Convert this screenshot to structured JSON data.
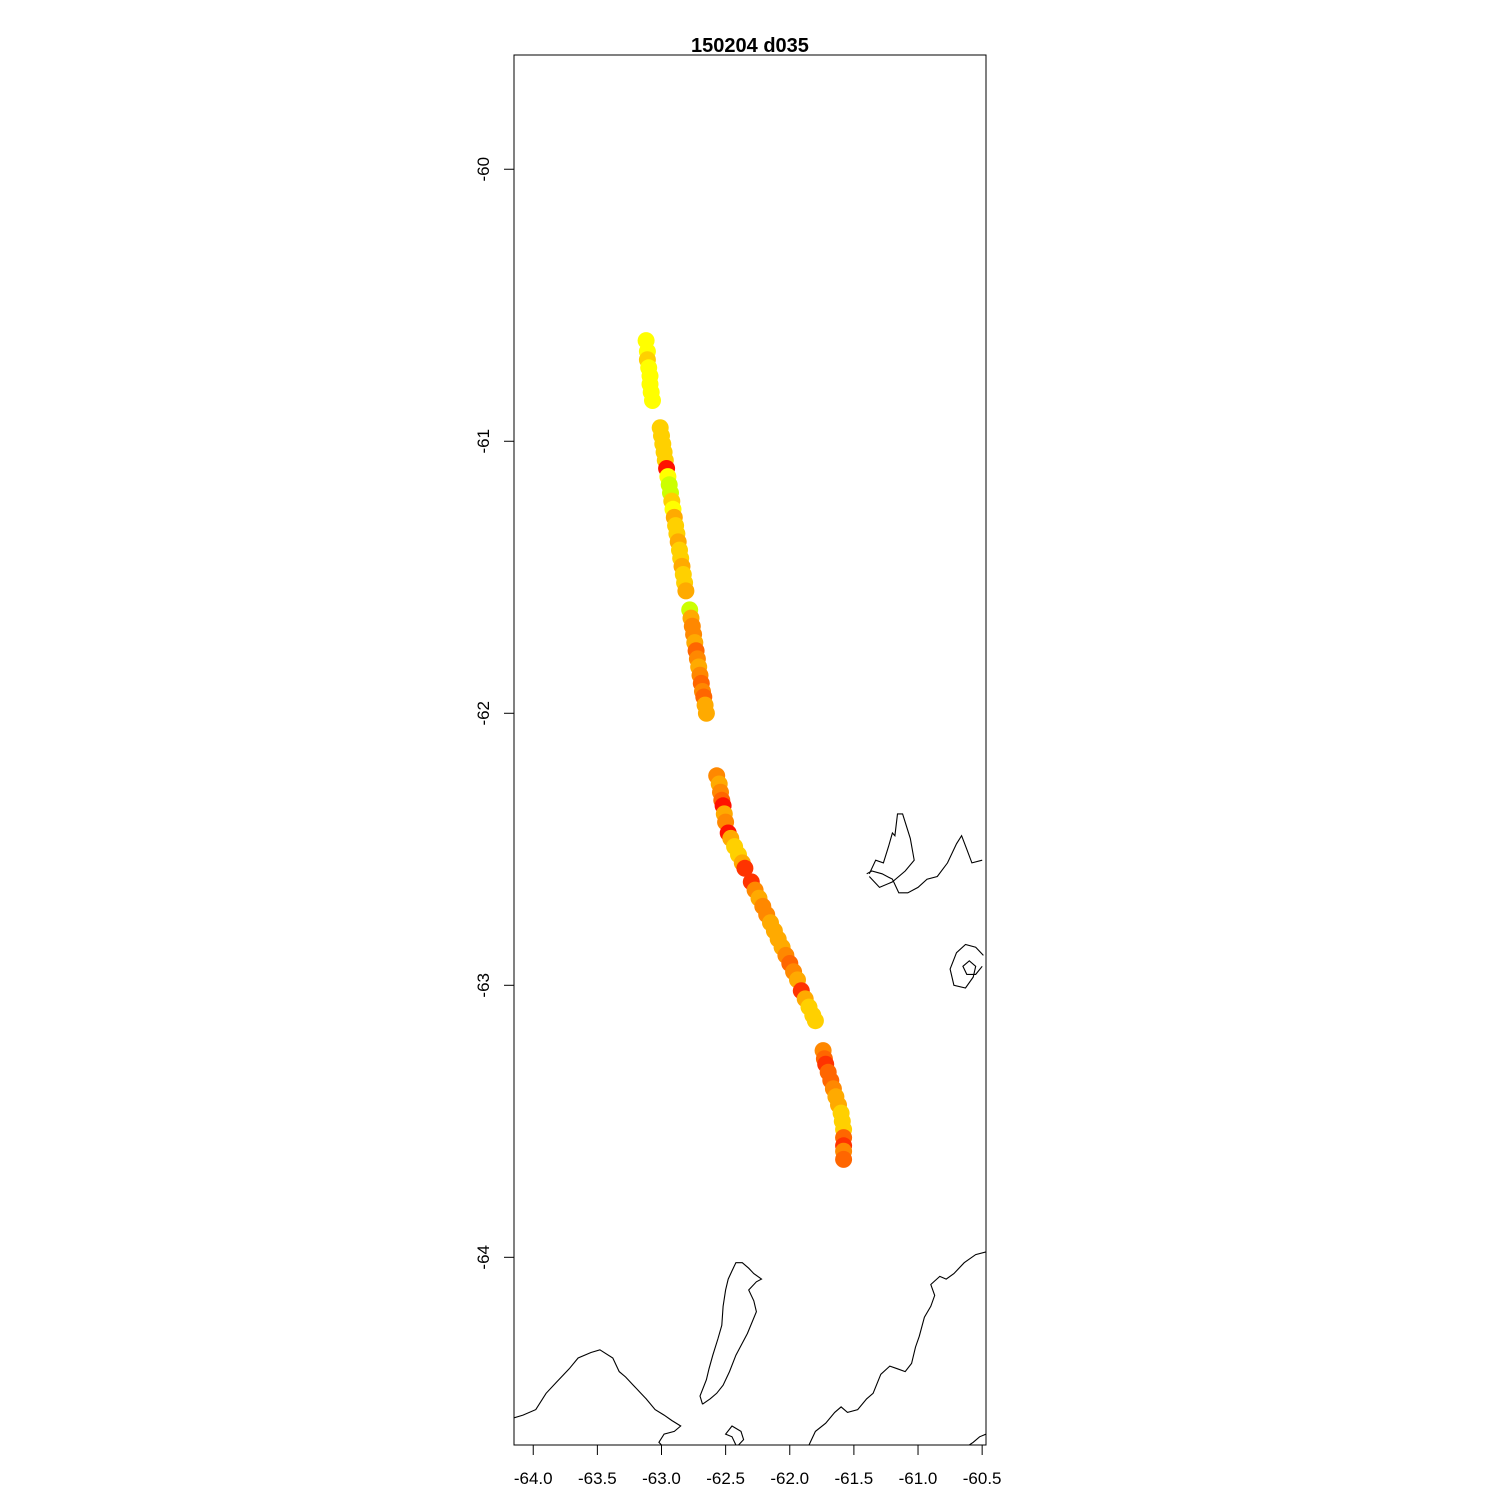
{
  "title": "150204   d035",
  "chart_data": {
    "type": "scatter",
    "title": "150204   d035",
    "xlabel": "",
    "ylabel": "",
    "xlim": [
      -64.15,
      -60.47
    ],
    "ylim": [
      -64.69,
      -59.58
    ],
    "x_ticks": [
      {
        "value": -64.0,
        "label": "-64.0"
      },
      {
        "value": -63.5,
        "label": "-63.5"
      },
      {
        "value": -63.0,
        "label": "-63.0"
      },
      {
        "value": -62.5,
        "label": "-62.5"
      },
      {
        "value": -62.0,
        "label": "-62.0"
      },
      {
        "value": -61.5,
        "label": "-61.5"
      },
      {
        "value": -61.0,
        "label": "-61.0"
      },
      {
        "value": -60.5,
        "label": "-60.5"
      }
    ],
    "y_ticks": [
      {
        "value": -60,
        "label": "-60"
      },
      {
        "value": -61,
        "label": "-61"
      },
      {
        "value": -62,
        "label": "-62"
      },
      {
        "value": -63,
        "label": "-63"
      },
      {
        "value": -64,
        "label": "-64"
      }
    ],
    "grid": false,
    "legend": "none",
    "colors": {
      "yellow": "#ffff00",
      "yellow_green": "#ccff00",
      "gold": "#ffd000",
      "amber": "#ffaa00",
      "orange": "#ff8800",
      "dark_orange": "#ff6600",
      "red_orange": "#ff3300",
      "red": "#ff1100"
    },
    "series": [
      {
        "points": [
          {
            "x": -63.12,
            "y": -60.63,
            "c": "yellow"
          },
          {
            "x": -63.11,
            "y": -60.67,
            "c": "yellow"
          },
          {
            "x": -63.11,
            "y": -60.7,
            "c": "gold"
          },
          {
            "x": -63.1,
            "y": -60.73,
            "c": "yellow"
          },
          {
            "x": -63.09,
            "y": -60.76,
            "c": "yellow"
          },
          {
            "x": -63.09,
            "y": -60.79,
            "c": "yellow"
          },
          {
            "x": -63.08,
            "y": -60.82,
            "c": "yellow"
          },
          {
            "x": -63.07,
            "y": -60.85,
            "c": "yellow"
          },
          {
            "x": -63.01,
            "y": -60.95,
            "c": "gold"
          },
          {
            "x": -63.0,
            "y": -60.98,
            "c": "gold"
          },
          {
            "x": -62.99,
            "y": -61.01,
            "c": "gold"
          },
          {
            "x": -62.98,
            "y": -61.04,
            "c": "gold"
          },
          {
            "x": -62.97,
            "y": -61.07,
            "c": "gold"
          },
          {
            "x": -62.96,
            "y": -61.1,
            "c": "red"
          },
          {
            "x": -62.95,
            "y": -61.13,
            "c": "yellow"
          },
          {
            "x": -62.94,
            "y": -61.16,
            "c": "yellow_green"
          },
          {
            "x": -62.93,
            "y": -61.19,
            "c": "yellow_green"
          },
          {
            "x": -62.92,
            "y": -61.22,
            "c": "gold"
          },
          {
            "x": -62.91,
            "y": -61.25,
            "c": "yellow"
          },
          {
            "x": -62.9,
            "y": -61.28,
            "c": "amber"
          },
          {
            "x": -62.89,
            "y": -61.31,
            "c": "gold"
          },
          {
            "x": -62.88,
            "y": -61.34,
            "c": "gold"
          },
          {
            "x": -62.87,
            "y": -61.37,
            "c": "amber"
          },
          {
            "x": -62.86,
            "y": -61.4,
            "c": "gold"
          },
          {
            "x": -62.85,
            "y": -61.43,
            "c": "gold"
          },
          {
            "x": -62.84,
            "y": -61.46,
            "c": "amber"
          },
          {
            "x": -62.83,
            "y": -61.49,
            "c": "gold"
          },
          {
            "x": -62.82,
            "y": -61.52,
            "c": "gold"
          },
          {
            "x": -62.81,
            "y": -61.55,
            "c": "amber"
          },
          {
            "x": -62.78,
            "y": -61.62,
            "c": "yellow_green"
          },
          {
            "x": -62.77,
            "y": -61.65,
            "c": "amber"
          },
          {
            "x": -62.76,
            "y": -61.68,
            "c": "orange"
          },
          {
            "x": -62.75,
            "y": -61.71,
            "c": "orange"
          },
          {
            "x": -62.74,
            "y": -61.74,
            "c": "amber"
          },
          {
            "x": -62.73,
            "y": -61.77,
            "c": "dark_orange"
          },
          {
            "x": -62.72,
            "y": -61.8,
            "c": "orange"
          },
          {
            "x": -62.71,
            "y": -61.83,
            "c": "amber"
          },
          {
            "x": -62.7,
            "y": -61.86,
            "c": "orange"
          },
          {
            "x": -62.69,
            "y": -61.89,
            "c": "dark_orange"
          },
          {
            "x": -62.68,
            "y": -61.92,
            "c": "orange"
          },
          {
            "x": -62.67,
            "y": -61.94,
            "c": "dark_orange"
          },
          {
            "x": -62.66,
            "y": -61.97,
            "c": "amber"
          },
          {
            "x": -62.65,
            "y": -62.0,
            "c": "amber"
          },
          {
            "x": -62.57,
            "y": -62.23,
            "c": "orange"
          },
          {
            "x": -62.55,
            "y": -62.26,
            "c": "amber"
          },
          {
            "x": -62.54,
            "y": -62.29,
            "c": "orange"
          },
          {
            "x": -62.53,
            "y": -62.32,
            "c": "dark_orange"
          },
          {
            "x": -62.52,
            "y": -62.34,
            "c": "red"
          },
          {
            "x": -62.51,
            "y": -62.37,
            "c": "amber"
          },
          {
            "x": -62.5,
            "y": -62.4,
            "c": "orange"
          },
          {
            "x": -62.48,
            "y": -62.44,
            "c": "red"
          },
          {
            "x": -62.46,
            "y": -62.46,
            "c": "amber"
          },
          {
            "x": -62.43,
            "y": -62.49,
            "c": "gold"
          },
          {
            "x": -62.4,
            "y": -62.52,
            "c": "gold"
          },
          {
            "x": -62.37,
            "y": -62.55,
            "c": "amber"
          },
          {
            "x": -62.35,
            "y": -62.57,
            "c": "red_orange"
          },
          {
            "x": -62.3,
            "y": -62.62,
            "c": "red_orange"
          },
          {
            "x": -62.27,
            "y": -62.65,
            "c": "orange"
          },
          {
            "x": -62.24,
            "y": -62.68,
            "c": "amber"
          },
          {
            "x": -62.21,
            "y": -62.71,
            "c": "orange"
          },
          {
            "x": -62.18,
            "y": -62.74,
            "c": "orange"
          },
          {
            "x": -62.15,
            "y": -62.77,
            "c": "amber"
          },
          {
            "x": -62.12,
            "y": -62.8,
            "c": "amber"
          },
          {
            "x": -62.09,
            "y": -62.83,
            "c": "amber"
          },
          {
            "x": -62.06,
            "y": -62.86,
            "c": "amber"
          },
          {
            "x": -62.03,
            "y": -62.89,
            "c": "orange"
          },
          {
            "x": -62.0,
            "y": -62.92,
            "c": "dark_orange"
          },
          {
            "x": -61.97,
            "y": -62.95,
            "c": "orange"
          },
          {
            "x": -61.94,
            "y": -62.98,
            "c": "amber"
          },
          {
            "x": -61.91,
            "y": -63.02,
            "c": "red_orange"
          },
          {
            "x": -61.88,
            "y": -63.05,
            "c": "amber"
          },
          {
            "x": -61.85,
            "y": -63.08,
            "c": "gold"
          },
          {
            "x": -61.82,
            "y": -63.11,
            "c": "gold"
          },
          {
            "x": -61.8,
            "y": -63.13,
            "c": "gold"
          },
          {
            "x": -61.74,
            "y": -63.24,
            "c": "orange"
          },
          {
            "x": -61.73,
            "y": -63.27,
            "c": "dark_orange"
          },
          {
            "x": -61.72,
            "y": -63.29,
            "c": "red_orange"
          },
          {
            "x": -61.7,
            "y": -63.32,
            "c": "dark_orange"
          },
          {
            "x": -61.68,
            "y": -63.35,
            "c": "dark_orange"
          },
          {
            "x": -61.66,
            "y": -63.38,
            "c": "orange"
          },
          {
            "x": -61.64,
            "y": -63.41,
            "c": "amber"
          },
          {
            "x": -61.62,
            "y": -63.44,
            "c": "amber"
          },
          {
            "x": -61.6,
            "y": -63.47,
            "c": "gold"
          },
          {
            "x": -61.59,
            "y": -63.5,
            "c": "gold"
          },
          {
            "x": -61.58,
            "y": -63.53,
            "c": "gold"
          },
          {
            "x": -61.58,
            "y": -63.56,
            "c": "dark_orange"
          },
          {
            "x": -61.58,
            "y": -63.59,
            "c": "red_orange"
          },
          {
            "x": -61.58,
            "y": -63.61,
            "c": "orange"
          },
          {
            "x": -61.58,
            "y": -63.64,
            "c": "dark_orange"
          }
        ]
      }
    ],
    "coastlines": [
      [
        [
          -61.38,
          -62.59
        ],
        [
          -61.33,
          -62.54
        ],
        [
          -61.27,
          -62.55
        ],
        [
          -61.23,
          -62.49
        ],
        [
          -61.2,
          -62.44
        ],
        [
          -61.18,
          -62.45
        ],
        [
          -61.16,
          -62.37
        ],
        [
          -61.12,
          -62.37
        ],
        [
          -61.06,
          -62.46
        ],
        [
          -61.03,
          -62.54
        ],
        [
          -61.1,
          -62.58
        ],
        [
          -61.2,
          -62.62
        ],
        [
          -61.3,
          -62.64
        ],
        [
          -61.38,
          -62.6
        ]
      ],
      [
        [
          -60.5,
          -62.54
        ],
        [
          -60.58,
          -62.55
        ],
        [
          -60.62,
          -62.5
        ],
        [
          -60.66,
          -62.45
        ],
        [
          -60.7,
          -62.48
        ],
        [
          -60.77,
          -62.55
        ],
        [
          -60.85,
          -62.6
        ],
        [
          -60.93,
          -62.61
        ],
        [
          -61.0,
          -62.64
        ],
        [
          -61.08,
          -62.66
        ],
        [
          -61.15,
          -62.66
        ],
        [
          -61.2,
          -62.61
        ],
        [
          -61.28,
          -62.59
        ],
        [
          -61.36,
          -62.58
        ],
        [
          -61.4,
          -62.59
        ]
      ],
      [
        [
          -60.49,
          -62.89
        ],
        [
          -60.55,
          -62.86
        ],
        [
          -60.63,
          -62.85
        ],
        [
          -60.7,
          -62.88
        ],
        [
          -60.75,
          -62.94
        ],
        [
          -60.72,
          -63.0
        ],
        [
          -60.63,
          -63.01
        ],
        [
          -60.57,
          -62.97
        ],
        [
          -60.55,
          -62.93
        ],
        [
          -60.6,
          -62.91
        ],
        [
          -60.65,
          -62.93
        ],
        [
          -60.62,
          -62.96
        ],
        [
          -60.55,
          -62.96
        ],
        [
          -60.5,
          -62.93
        ]
      ],
      [
        [
          -64.15,
          -64.59
        ],
        [
          -64.08,
          -64.58
        ],
        [
          -63.98,
          -64.56
        ],
        [
          -63.9,
          -64.5
        ],
        [
          -63.82,
          -64.46
        ],
        [
          -63.72,
          -64.41
        ],
        [
          -63.65,
          -64.37
        ],
        [
          -63.55,
          -64.35
        ],
        [
          -63.48,
          -64.34
        ],
        [
          -63.38,
          -64.37
        ],
        [
          -63.33,
          -64.42
        ],
        [
          -63.28,
          -64.44
        ],
        [
          -63.22,
          -64.47
        ],
        [
          -63.18,
          -64.49
        ],
        [
          -63.12,
          -64.52
        ],
        [
          -63.05,
          -64.56
        ],
        [
          -62.98,
          -64.58
        ],
        [
          -62.92,
          -64.6
        ],
        [
          -62.85,
          -64.62
        ],
        [
          -62.9,
          -64.64
        ],
        [
          -62.98,
          -64.65
        ],
        [
          -63.02,
          -64.68
        ],
        [
          -63.0,
          -64.69
        ]
      ],
      [
        [
          -62.68,
          -64.54
        ],
        [
          -62.62,
          -64.52
        ],
        [
          -62.57,
          -64.5
        ],
        [
          -62.52,
          -64.47
        ],
        [
          -62.47,
          -64.42
        ],
        [
          -62.42,
          -64.36
        ],
        [
          -62.33,
          -64.28
        ],
        [
          -62.26,
          -64.2
        ],
        [
          -62.28,
          -64.16
        ],
        [
          -62.32,
          -64.12
        ],
        [
          -62.26,
          -64.09
        ],
        [
          -62.22,
          -64.08
        ],
        [
          -62.28,
          -64.06
        ],
        [
          -62.32,
          -64.04
        ],
        [
          -62.37,
          -64.02
        ],
        [
          -62.42,
          -64.02
        ],
        [
          -62.45,
          -64.05
        ],
        [
          -62.48,
          -64.08
        ],
        [
          -62.5,
          -64.12
        ],
        [
          -62.52,
          -64.18
        ],
        [
          -62.53,
          -64.25
        ],
        [
          -62.56,
          -64.3
        ],
        [
          -62.6,
          -64.36
        ],
        [
          -62.63,
          -64.41
        ],
        [
          -62.65,
          -64.45
        ],
        [
          -62.7,
          -64.51
        ],
        [
          -62.68,
          -64.54
        ]
      ],
      [
        [
          -60.47,
          -63.98
        ],
        [
          -60.55,
          -63.99
        ],
        [
          -60.64,
          -64.02
        ],
        [
          -60.72,
          -64.06
        ],
        [
          -60.78,
          -64.08
        ],
        [
          -60.83,
          -64.07
        ],
        [
          -60.9,
          -64.1
        ],
        [
          -60.87,
          -64.14
        ],
        [
          -60.9,
          -64.18
        ],
        [
          -60.95,
          -64.22
        ],
        [
          -60.99,
          -64.29
        ],
        [
          -61.02,
          -64.33
        ],
        [
          -61.05,
          -64.39
        ],
        [
          -61.1,
          -64.42
        ],
        [
          -61.16,
          -64.41
        ],
        [
          -61.22,
          -64.4
        ],
        [
          -61.29,
          -64.43
        ],
        [
          -61.35,
          -64.5
        ],
        [
          -61.4,
          -64.52
        ],
        [
          -61.47,
          -64.56
        ],
        [
          -61.55,
          -64.57
        ],
        [
          -61.6,
          -64.55
        ],
        [
          -61.65,
          -64.57
        ],
        [
          -61.72,
          -64.61
        ],
        [
          -61.8,
          -64.64
        ],
        [
          -61.85,
          -64.69
        ]
      ],
      [
        [
          -60.47,
          -64.65
        ],
        [
          -60.52,
          -64.66
        ],
        [
          -60.57,
          -64.68
        ],
        [
          -60.6,
          -64.69
        ]
      ],
      [
        [
          -62.42,
          -64.69
        ],
        [
          -62.45,
          -64.66
        ],
        [
          -62.5,
          -64.65
        ],
        [
          -62.45,
          -64.62
        ],
        [
          -62.38,
          -64.64
        ],
        [
          -62.36,
          -64.67
        ],
        [
          -62.4,
          -64.69
        ]
      ]
    ]
  }
}
